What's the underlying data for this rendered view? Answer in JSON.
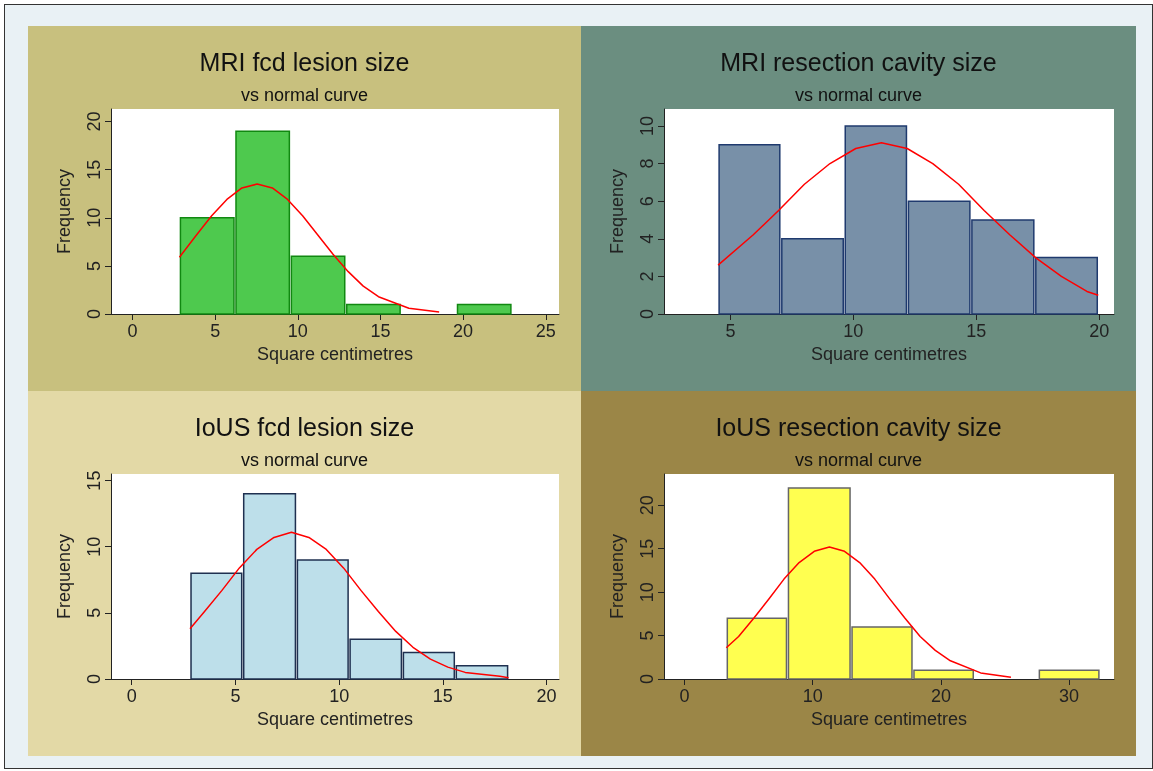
{
  "chart_data": [
    {
      "type": "histogram",
      "title": "MRI fcd lesion size",
      "subtitle": "vs normal curve",
      "xlabel": "Square centimetres",
      "ylabel": "Frequency",
      "xlim": [
        -1.3,
        25.8
      ],
      "xticks": [
        0,
        5,
        10,
        15,
        20,
        25
      ],
      "ylim": [
        0,
        21.3
      ],
      "yticks": [
        0,
        5,
        10,
        15,
        20
      ],
      "series": [
        {
          "color": "#4ec94e",
          "bins": [
            2.84,
            6.2,
            9.55,
            12.9,
            16.25,
            19.6,
            22.95
          ],
          "values": [
            10,
            19,
            6,
            1,
            0,
            1
          ]
        },
        {
          "type": "line",
          "color": "#ff0000",
          "x": [
            2.84,
            3.87,
            4.79,
            5.71,
            6.62,
            7.54,
            8.46,
            9.38,
            10.29,
            11.21,
            12.13,
            13.05,
            13.96,
            14.88,
            16.72,
            18.55
          ],
          "values": [
            5.9,
            8.2,
            10.2,
            11.9,
            13.1,
            13.5,
            13.1,
            11.9,
            10.2,
            8.2,
            6.2,
            4.4,
            2.9,
            1.8,
            0.6,
            0.2
          ]
        }
      ]
    },
    {
      "type": "histogram",
      "title": "MRI resection cavity size",
      "subtitle": "vs normal curve",
      "xlabel": "Square centimetres",
      "ylabel": "Frequency",
      "xlim": [
        2.3,
        20.6
      ],
      "xticks": [
        5,
        10,
        15,
        20
      ],
      "ylim": [
        0,
        10.9
      ],
      "yticks": [
        0,
        2,
        4,
        6,
        8,
        10
      ],
      "series": [
        {
          "color": "#7890a8",
          "bins": [
            4.5,
            7.05,
            9.63,
            12.2,
            14.78,
            17.38,
            19.96
          ],
          "values": [
            9,
            4,
            10,
            6,
            5,
            3
          ]
        },
        {
          "type": "line",
          "color": "#ff0000",
          "x": [
            4.5,
            5.92,
            6.96,
            8.01,
            9.05,
            10.1,
            11.14,
            12.19,
            13.23,
            14.28,
            15.32,
            16.37,
            17.41,
            18.46,
            19.5,
            19.96
          ],
          "values": [
            2.6,
            4.2,
            5.5,
            6.9,
            8.0,
            8.8,
            9.1,
            8.8,
            8.0,
            6.9,
            5.5,
            4.2,
            3.0,
            2.0,
            1.2,
            1.0
          ]
        }
      ]
    },
    {
      "type": "histogram",
      "title": "IoUS fcd lesion size",
      "subtitle": "vs normal curve",
      "xlabel": "Square centimetres",
      "ylabel": "Frequency",
      "xlim": [
        -1.0,
        20.6
      ],
      "xticks": [
        0,
        5,
        10,
        15,
        20
      ],
      "ylim": [
        0,
        15.5
      ],
      "yticks": [
        0,
        5,
        10,
        15
      ],
      "series": [
        {
          "color": "#bddfea",
          "bins": [
            2.81,
            5.35,
            7.94,
            10.48,
            13.05,
            15.6,
            18.17
          ],
          "values": [
            8,
            14,
            9,
            3,
            2,
            1
          ]
        },
        {
          "type": "line",
          "color": "#ff0000",
          "x": [
            2.81,
            3.51,
            4.35,
            5.19,
            6.03,
            6.86,
            7.7,
            8.54,
            9.38,
            10.21,
            11.05,
            11.89,
            12.73,
            13.56,
            14.4,
            15.24,
            16.08,
            17.75,
            18.17
          ],
          "values": [
            3.8,
            5.1,
            6.7,
            8.4,
            9.8,
            10.7,
            11.1,
            10.7,
            9.8,
            8.4,
            6.7,
            5.1,
            3.6,
            2.4,
            1.5,
            0.9,
            0.5,
            0.2,
            0.1
          ]
        }
      ]
    },
    {
      "type": "histogram",
      "title": "IoUS resection cavity size",
      "subtitle": "vs normal curve",
      "xlabel": "Square centimetres",
      "ylabel": "Frequency",
      "xlim": [
        -1.6,
        33.5
      ],
      "xticks": [
        0,
        10,
        20,
        30
      ],
      "ylim": [
        0,
        23.6
      ],
      "yticks": [
        0,
        5,
        10,
        15,
        20
      ],
      "series": [
        {
          "color": "#ffff50",
          "bins": [
            3.26,
            8.03,
            12.99,
            17.82,
            22.6,
            27.6,
            32.4
          ],
          "values": [
            7,
            22,
            6,
            1,
            0,
            1
          ]
        },
        {
          "type": "line",
          "color": "#ff0000",
          "x": [
            3.26,
            4.22,
            5.4,
            6.58,
            7.76,
            8.94,
            10.12,
            11.3,
            12.48,
            13.66,
            14.84,
            16.02,
            17.2,
            18.38,
            19.56,
            20.74,
            23.1,
            25.46
          ],
          "values": [
            3.6,
            4.9,
            7.0,
            9.2,
            11.5,
            13.4,
            14.7,
            15.2,
            14.7,
            13.4,
            11.5,
            9.2,
            7.0,
            4.9,
            3.3,
            2.1,
            0.7,
            0.2
          ]
        }
      ]
    }
  ]
}
